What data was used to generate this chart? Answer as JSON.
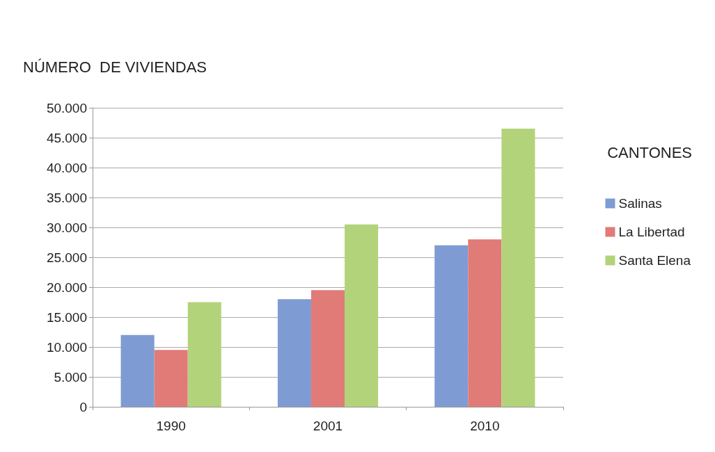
{
  "chart_data": {
    "type": "bar",
    "title": "NÚMERO  DE VIVIENDAS",
    "legend_title": "CANTONES",
    "categories": [
      "1990",
      "2001",
      "2010"
    ],
    "series": [
      {
        "name": "Salinas",
        "color": "#7f9bd3",
        "values": [
          12000,
          18000,
          27000
        ]
      },
      {
        "name": "La Libertad",
        "color": "#e07b78",
        "values": [
          9500,
          19500,
          28000
        ]
      },
      {
        "name": "Santa Elena",
        "color": "#b3d37a",
        "values": [
          17500,
          30500,
          46500
        ]
      }
    ],
    "ylim": [
      0,
      50000
    ],
    "yticks": [
      {
        "value": 0,
        "label": "0"
      },
      {
        "value": 5000,
        "label": "5.000"
      },
      {
        "value": 10000,
        "label": "10.000"
      },
      {
        "value": 15000,
        "label": "15.000"
      },
      {
        "value": 20000,
        "label": "20.000"
      },
      {
        "value": 25000,
        "label": "25.000"
      },
      {
        "value": 30000,
        "label": "30.000"
      },
      {
        "value": 35000,
        "label": "35.000"
      },
      {
        "value": 40000,
        "label": "40.000"
      },
      {
        "value": 45000,
        "label": "45.000"
      },
      {
        "value": 50000,
        "label": "50.000"
      }
    ],
    "grid": "y",
    "legend": "right"
  }
}
